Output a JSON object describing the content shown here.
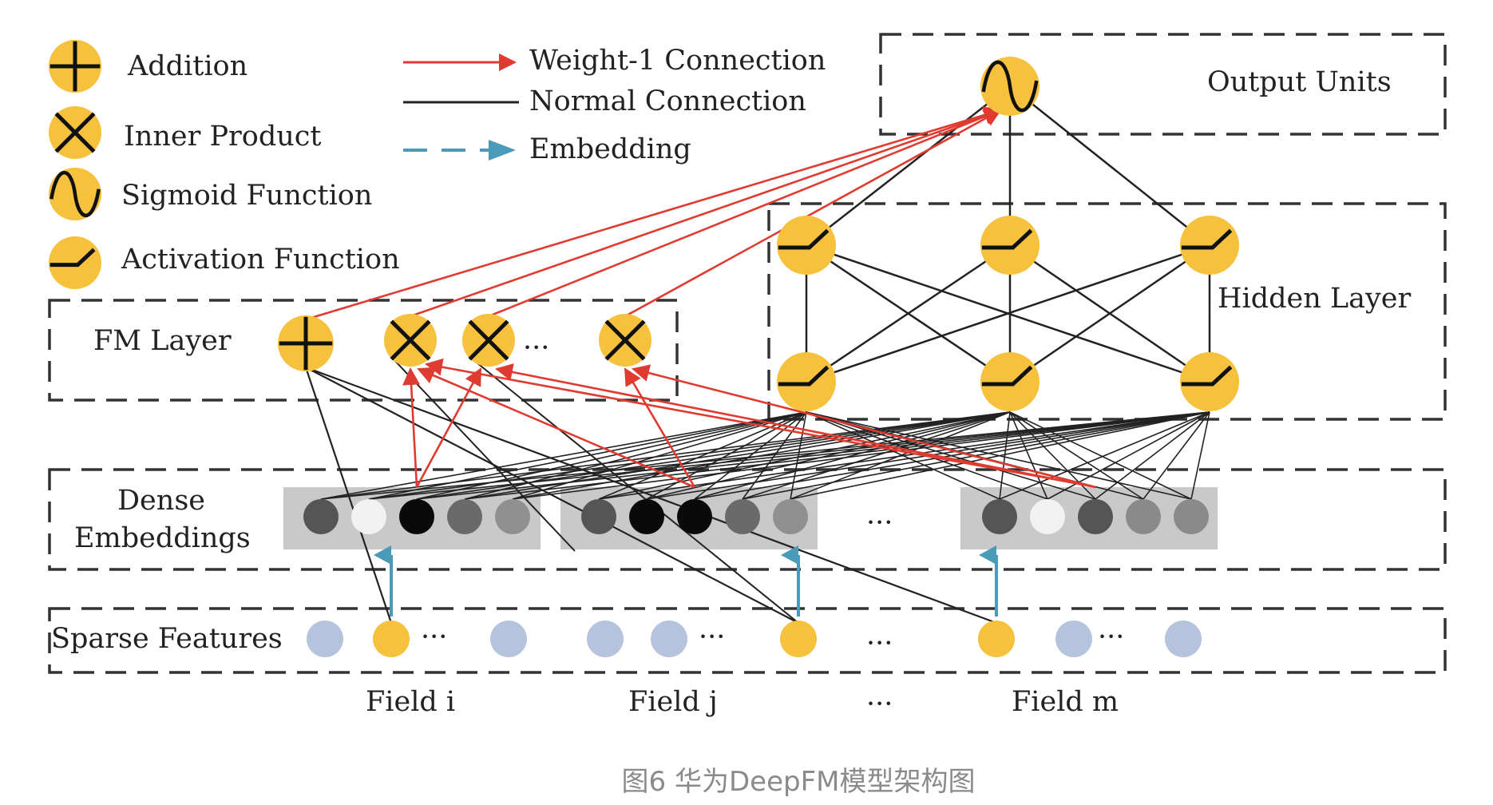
{
  "legend": {
    "addition": "Addition",
    "inner_product": "Inner Product",
    "sigmoid": "Sigmoid Function",
    "activation": "Activation Function",
    "weight1": "Weight-1 Connection",
    "normal": "Normal Connection",
    "embedding": "Embedding"
  },
  "layers": {
    "output": "Output Units",
    "hidden": "Hidden Layer",
    "fm": "FM Layer",
    "dense_1": "Dense",
    "dense_2": "Embeddings",
    "sparse": "Sparse Features"
  },
  "fields": {
    "i": "Field i",
    "j": "Field j",
    "m": "Field m"
  },
  "ellipsis": "···",
  "caption": "图6 华为DeepFM模型架构图",
  "colors": {
    "node": "#f6c23e",
    "sparse_off": "#b5c4dc",
    "weight1": "#e03b30",
    "embedding": "#4a9bb8",
    "dense_bg": "#c9c9c9"
  }
}
